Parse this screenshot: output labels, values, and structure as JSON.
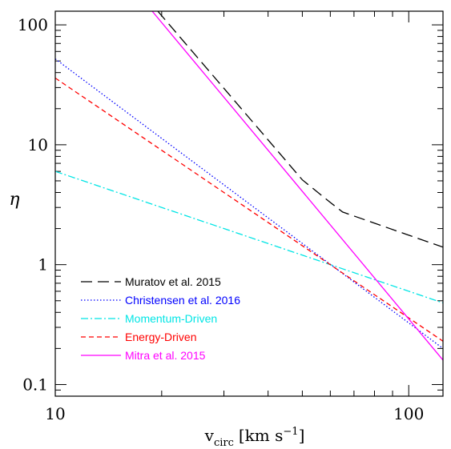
{
  "chart_data": {
    "type": "line",
    "title": "",
    "xlabel": "v",
    "xlabel_sub": "circ",
    "xlabel_units": "[km s",
    "xlabel_exp": "−1",
    "xlabel_close": "]",
    "ylabel": "η",
    "xscale": "log",
    "yscale": "log",
    "xlim": [
      10,
      125
    ],
    "ylim": [
      0.08,
      130
    ],
    "x_ticklabels": [
      {
        "value": 10,
        "label": "10"
      },
      {
        "value": 100,
        "label": "100"
      }
    ],
    "y_ticklabels": [
      {
        "value": 0.1,
        "label": "0.1"
      },
      {
        "value": 1,
        "label": "1"
      },
      {
        "value": 10,
        "label": "10"
      },
      {
        "value": 100,
        "label": "100"
      }
    ],
    "grid": false,
    "legend_position": "bottom-left",
    "series": [
      {
        "name": "Muratov et al. 2015",
        "color": "#000000",
        "dash": "long-dash",
        "x": [
          19.5,
          50,
          60,
          65,
          125
        ],
        "y": [
          130,
          5.1,
          3.3,
          2.75,
          1.4
        ]
      },
      {
        "name": "Christensen et al. 2016",
        "color": "#0000ff",
        "dash": "dotted",
        "x": [
          10,
          125
        ],
        "y": [
          52,
          0.2
        ]
      },
      {
        "name": "Momentum-Driven",
        "color": "#00e5e5",
        "dash": "dash-dot",
        "x": [
          10,
          125
        ],
        "y": [
          6,
          0.48
        ]
      },
      {
        "name": "Energy-Driven",
        "color": "#ff0000",
        "dash": "short-dash",
        "x": [
          10,
          125
        ],
        "y": [
          36,
          0.23
        ]
      },
      {
        "name": "Mitra et al. 2015",
        "color": "#ff00ff",
        "dash": "solid",
        "x": [
          18.8,
          125
        ],
        "y": [
          130,
          0.16
        ]
      }
    ]
  }
}
